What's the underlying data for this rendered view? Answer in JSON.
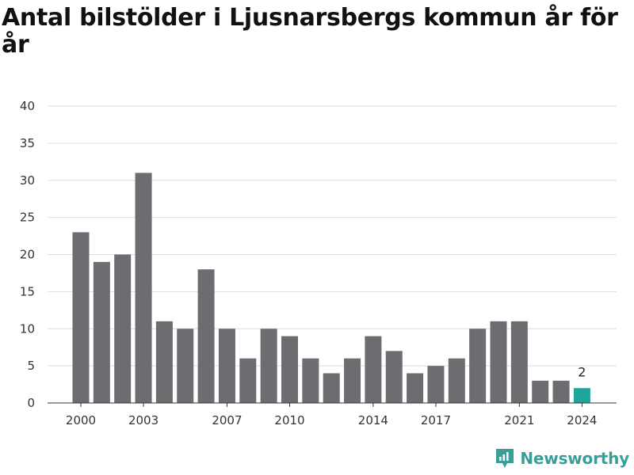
{
  "chart_data": {
    "type": "bar",
    "title": "Antal bilstölder i Ljusnarsbergs kommun år för år",
    "xlabel": "",
    "ylabel": "",
    "x": [
      2000,
      2001,
      2002,
      2003,
      2004,
      2005,
      2006,
      2007,
      2008,
      2009,
      2010,
      2011,
      2012,
      2013,
      2014,
      2015,
      2016,
      2017,
      2018,
      2019,
      2020,
      2021,
      2022,
      2023,
      2024
    ],
    "values": [
      23,
      19,
      20,
      31,
      11,
      10,
      18,
      10,
      6,
      10,
      9,
      6,
      4,
      6,
      9,
      7,
      4,
      5,
      6,
      10,
      11,
      11,
      3,
      3,
      2
    ],
    "x_tick_labels": [
      "2000",
      "2003",
      "2007",
      "2010",
      "2014",
      "2017",
      "2021",
      "2024"
    ],
    "y_ticks": [
      0,
      5,
      10,
      15,
      20,
      25,
      30,
      35,
      40
    ],
    "ylim": [
      0,
      40
    ],
    "grid": true,
    "highlight": {
      "year": 2024,
      "label": "2"
    },
    "colors": {
      "bar": "#6d6c71",
      "highlight": "#1ea69a",
      "grid": "#dddddd"
    }
  },
  "brand": {
    "name": "Newsworthy",
    "icon": "newsworthy-logo-icon",
    "color": "#3a9e98"
  }
}
